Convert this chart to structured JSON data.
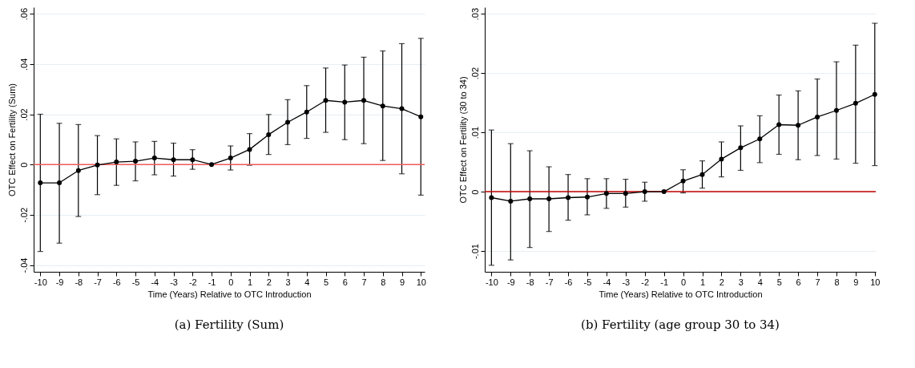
{
  "chart_data": [
    {
      "type": "line",
      "xlabel": "Time (Years) Relative to OTC Introduction",
      "ylabel": "OTC Effect on Fertility (Sum)",
      "annotations": [
        "(a) Fertility (Sum)"
      ],
      "x": [
        -10,
        -9,
        -8,
        -7,
        -6,
        -5,
        -4,
        -3,
        -2,
        -1,
        0,
        1,
        2,
        3,
        4,
        5,
        6,
        7,
        8,
        9,
        10
      ],
      "xlim": [
        -10.35,
        10.2
      ],
      "xticks": [
        -10,
        -9,
        -8,
        -7,
        -6,
        -5,
        -4,
        -3,
        -2,
        -1,
        0,
        1,
        2,
        3,
        4,
        5,
        6,
        7,
        8,
        9,
        10
      ],
      "ylim": [
        -0.0427,
        0.0626
      ],
      "yticks": [
        {
          "value": -0.04,
          "label": "-.04"
        },
        {
          "value": -0.02,
          "label": "-.02"
        },
        0,
        {
          "value": 0.02,
          "label": ".02"
        },
        {
          "value": 0.04,
          "label": ".04"
        },
        {
          "value": 0.06,
          "label": ".06"
        }
      ],
      "grid": "y",
      "marker": "circle",
      "line_style": "solid",
      "ref_lines": [
        {
          "axis": "y",
          "value": 0,
          "color": "#f05a5a"
        }
      ],
      "series": [
        {
          "color": "#000000",
          "values": [
            -0.0073,
            -0.0073,
            -0.0024,
            -0.0002,
            0.001,
            0.0013,
            0.0026,
            0.0019,
            0.0019,
            0,
            0.0026,
            0.006,
            0.0119,
            0.0168,
            0.0209,
            0.0255,
            0.0248,
            0.0255,
            0.0233,
            0.0222,
            0.019
          ],
          "errors": [
            [
              -0.0346,
              0.02
            ],
            [
              -0.0313,
              0.0164
            ],
            [
              -0.0207,
              0.0159
            ],
            [
              -0.012,
              0.0115
            ],
            [
              -0.0083,
              0.0102
            ],
            [
              -0.0065,
              0.009
            ],
            [
              -0.0041,
              0.0092
            ],
            [
              -0.0046,
              0.0085
            ],
            [
              -0.0019,
              0.0059
            ],
            null,
            [
              -0.0022,
              0.0074
            ],
            [
              -0.0003,
              0.0123
            ],
            [
              0.004,
              0.0199
            ],
            [
              0.0079,
              0.0258
            ],
            [
              0.0104,
              0.0314
            ],
            [
              0.0128,
              0.0384
            ],
            [
              0.0099,
              0.0396
            ],
            [
              0.0083,
              0.0427
            ],
            [
              0.0016,
              0.0452
            ],
            [
              -0.0037,
              0.0481
            ],
            [
              -0.0122,
              0.0502
            ]
          ]
        }
      ]
    },
    {
      "type": "line",
      "xlabel": "Time (Years) Relative to OTC Introduction",
      "ylabel": "OTC Effect on Fertility (30 to 34)",
      "annotations": [
        "(b) Fertility (age group 30 to 34)"
      ],
      "x": [
        -10,
        -9,
        -8,
        -7,
        -6,
        -5,
        -4,
        -3,
        -2,
        -1,
        0,
        1,
        2,
        3,
        4,
        5,
        6,
        7,
        8,
        9,
        10
      ],
      "xlim": [
        -10.35,
        10.05
      ],
      "xticks": [
        -10,
        -9,
        -8,
        -7,
        -6,
        -5,
        -4,
        -3,
        -2,
        -1,
        0,
        1,
        2,
        3,
        4,
        5,
        6,
        7,
        8,
        9,
        10
      ],
      "ylim": [
        -0.0135,
        0.0311
      ],
      "yticks": [
        {
          "value": -0.01,
          "label": "-.01"
        },
        0,
        {
          "value": 0.01,
          "label": ".01"
        },
        {
          "value": 0.02,
          "label": ".02"
        },
        {
          "value": 0.03,
          "label": ".03"
        }
      ],
      "grid": "y",
      "marker": "circle",
      "line_style": "solid",
      "ref_lines": [
        {
          "axis": "y",
          "value": 0,
          "color": "#c00000"
        }
      ],
      "series": [
        {
          "color": "#000000",
          "values": [
            -0.001,
            -0.0016,
            -0.0012,
            -0.0012,
            -0.001,
            -0.0009,
            -0.0003,
            -0.0003,
            0,
            0,
            0.0018,
            0.0029,
            0.0055,
            0.0074,
            0.0089,
            0.0113,
            0.0112,
            0.0126,
            0.0137,
            0.0149,
            0.0164
          ],
          "errors": [
            [
              -0.0124,
              0.0104
            ],
            [
              -0.0115,
              0.0081
            ],
            [
              -0.0094,
              0.0069
            ],
            [
              -0.0067,
              0.0042
            ],
            [
              -0.0048,
              0.0029
            ],
            [
              -0.0039,
              0.0022
            ],
            [
              -0.0028,
              0.0022
            ],
            [
              -0.0026,
              0.0021
            ],
            [
              -0.0016,
              0.0016
            ],
            null,
            [
              -0.0002,
              0.0037
            ],
            [
              0.0006,
              0.0052
            ],
            [
              0.0025,
              0.0084
            ],
            [
              0.0036,
              0.0111
            ],
            [
              0.0049,
              0.0128
            ],
            [
              0.0063,
              0.0163
            ],
            [
              0.0054,
              0.017
            ],
            [
              0.0061,
              0.019
            ],
            [
              0.0055,
              0.0219
            ],
            [
              0.0048,
              0.0247
            ],
            [
              0.0044,
              0.0284
            ]
          ]
        }
      ]
    }
  ]
}
